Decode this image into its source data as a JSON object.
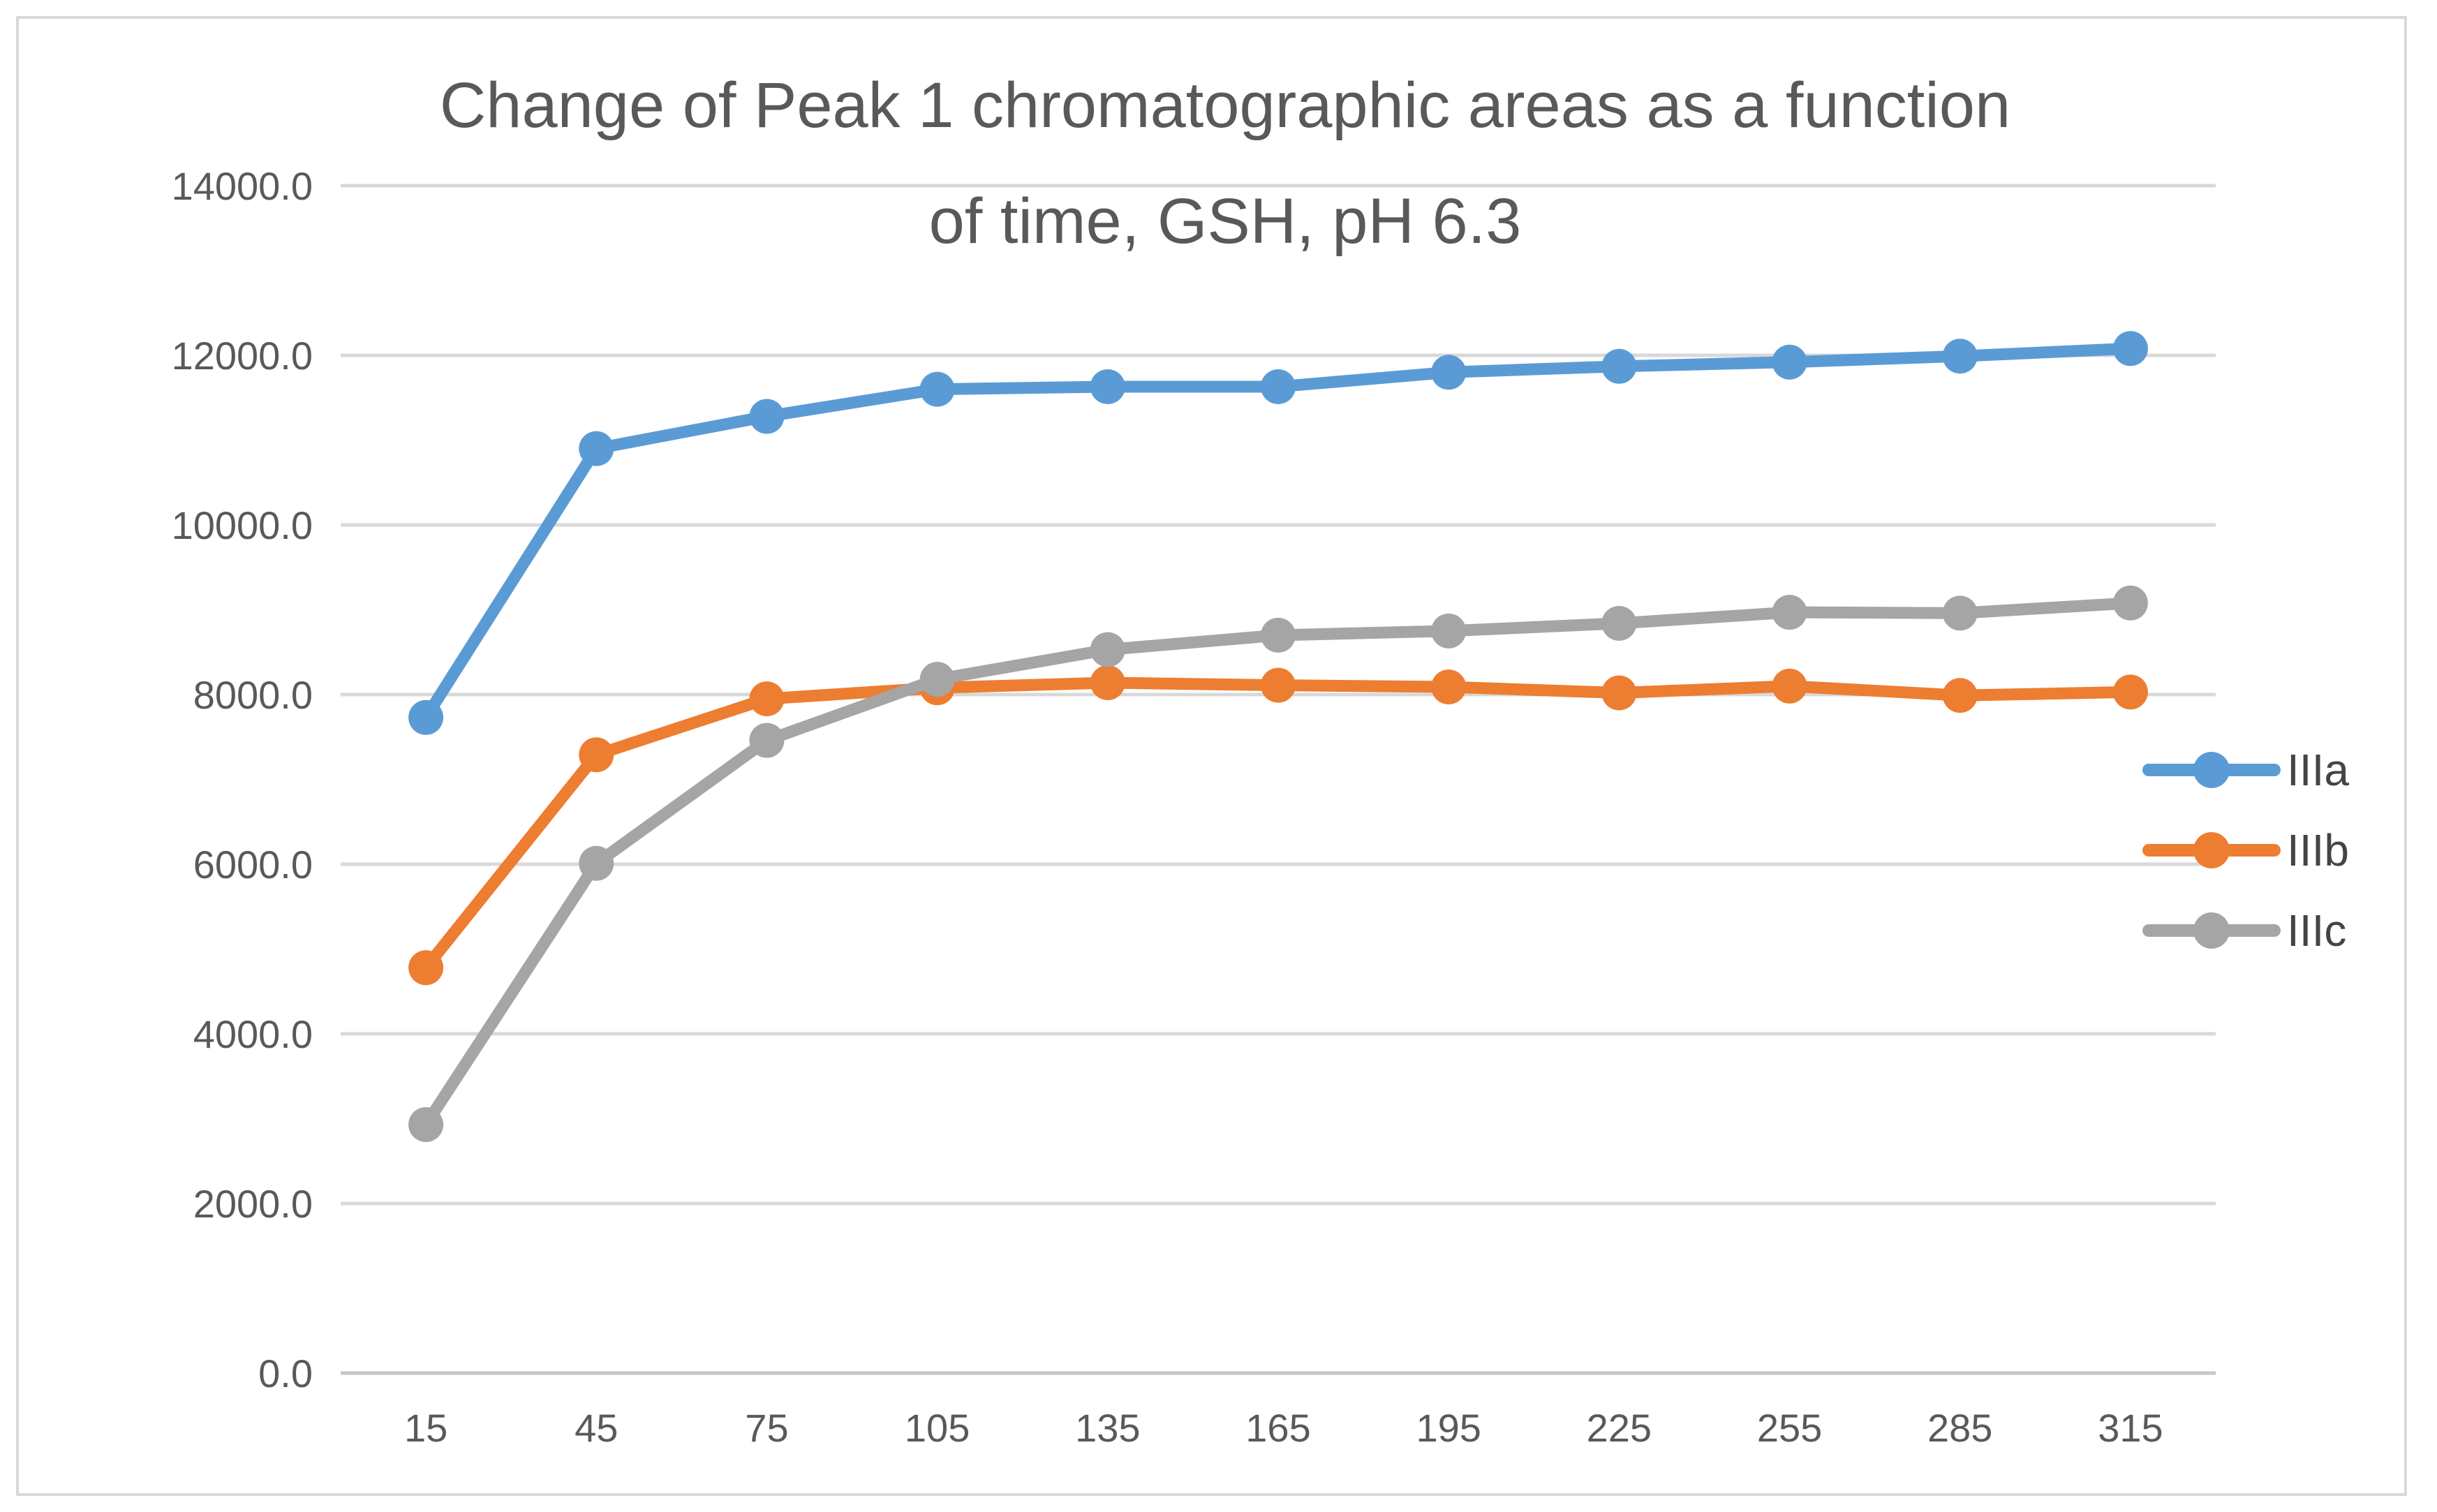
{
  "title": {
    "line1": "Change of Peak 1 chromatographic areas as a function",
    "line2": "of time, GSH, pH 6.3"
  },
  "chart_data": {
    "type": "line",
    "title": "Change of Peak 1 chromatographic areas as a function of time, GSH, pH 6.3",
    "xlabel": "",
    "ylabel": "",
    "x_categories": [
      "15",
      "45",
      "75",
      "105",
      "135",
      "165",
      "195",
      "225",
      "255",
      "285",
      "315"
    ],
    "series": [
      {
        "name": "IIIa",
        "color": "#5B9BD5",
        "values": [
          7730,
          10900,
          11280,
          11600,
          11630,
          11630,
          11800,
          11870,
          11920,
          11990,
          12080
        ]
      },
      {
        "name": "IIIb",
        "color": "#ED7D31",
        "values": [
          4780,
          7290,
          7950,
          8080,
          8140,
          8110,
          8090,
          8020,
          8100,
          7990,
          8030
        ]
      },
      {
        "name": "IIIc",
        "color": "#A5A5A5",
        "values": [
          2930,
          6010,
          7460,
          8180,
          8530,
          8700,
          8750,
          8840,
          8970,
          8960,
          9080
        ]
      }
    ],
    "ylim": [
      0,
      14000
    ],
    "ytick_step": 2000,
    "ytick_labels": [
      "0.0",
      "2000.0",
      "4000.0",
      "6000.0",
      "8000.0",
      "10000.0",
      "12000.0",
      "14000.0"
    ],
    "grid": true,
    "legend_position": "right",
    "marker": "circle"
  },
  "colors": {
    "grid": "#D9D9D9",
    "axis": "#C6C6C6",
    "frame_border": "#D9D9D9",
    "title_text": "#595959",
    "tick_text": "#595959",
    "legend_text": "#444444",
    "background": "#FFFFFF"
  }
}
